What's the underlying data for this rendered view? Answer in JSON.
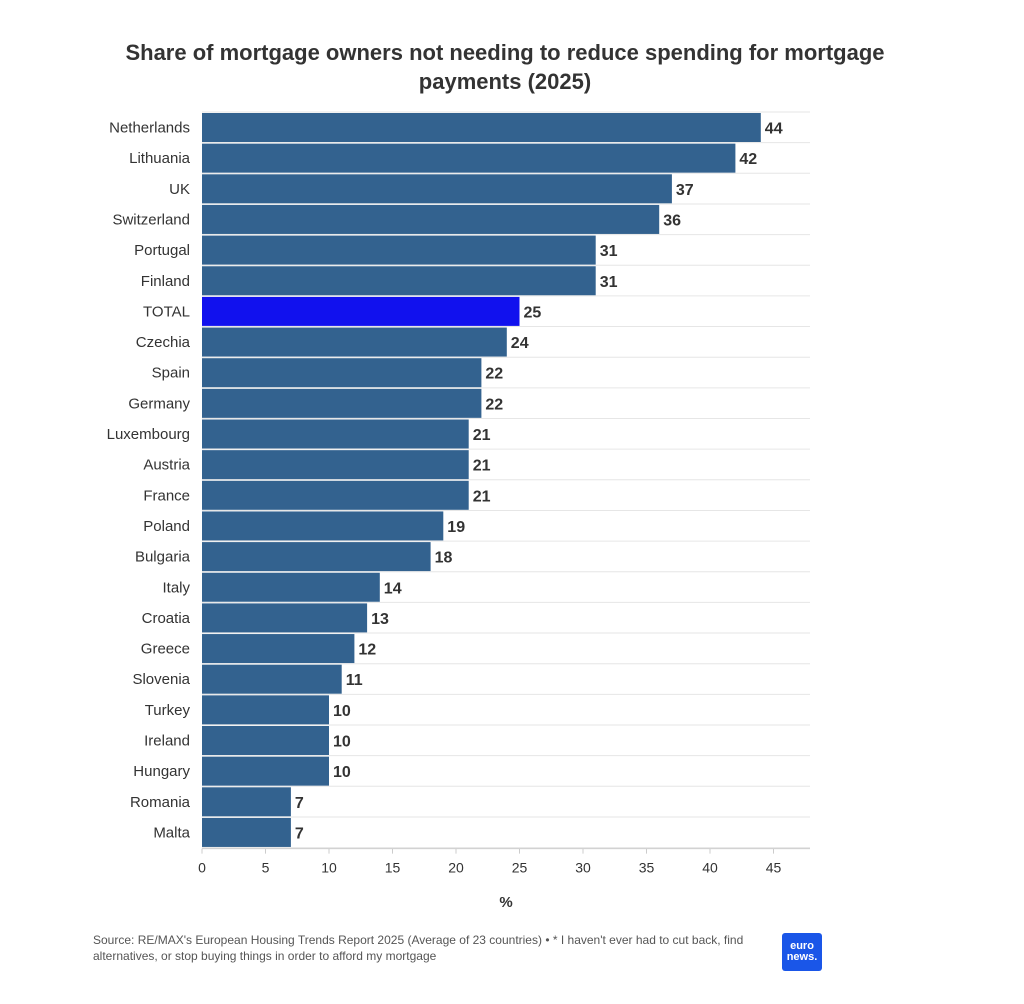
{
  "chart_data": {
    "type": "bar",
    "orientation": "horizontal",
    "title": "Share of mortgage owners not needing to reduce spending for mortgage payments (2025)",
    "xlabel": "%",
    "ylabel": "",
    "xlim": [
      0,
      47
    ],
    "xticks": [
      0,
      5,
      10,
      15,
      20,
      25,
      30,
      35,
      40,
      45
    ],
    "grid": true,
    "categories": [
      "Netherlands",
      "Lithuania",
      "UK",
      "Switzerland",
      "Portugal",
      "Finland",
      "TOTAL",
      "Czechia",
      "Spain",
      "Germany",
      "Luxembourg",
      "Austria",
      "France",
      "Poland",
      "Bulgaria",
      "Italy",
      "Croatia",
      "Greece",
      "Slovenia",
      "Turkey",
      "Ireland",
      "Hungary",
      "Romania",
      "Malta"
    ],
    "values": [
      44,
      42,
      37,
      36,
      31,
      31,
      25,
      24,
      22,
      22,
      21,
      21,
      21,
      19,
      18,
      14,
      13,
      12,
      11,
      10,
      10,
      10,
      7,
      7
    ],
    "colors": {
      "default": "#33628f",
      "highlight": "#1111ee",
      "highlight_category": "TOTAL"
    }
  },
  "footer": {
    "source": "Source: RE/MAX's European Housing Trends Report 2025 (Average of 23 countries) • * I haven't ever had to cut back, find alternatives, or stop buying things in order to afford my mortgage"
  },
  "logo": {
    "line1": "euro",
    "line2": "news."
  }
}
